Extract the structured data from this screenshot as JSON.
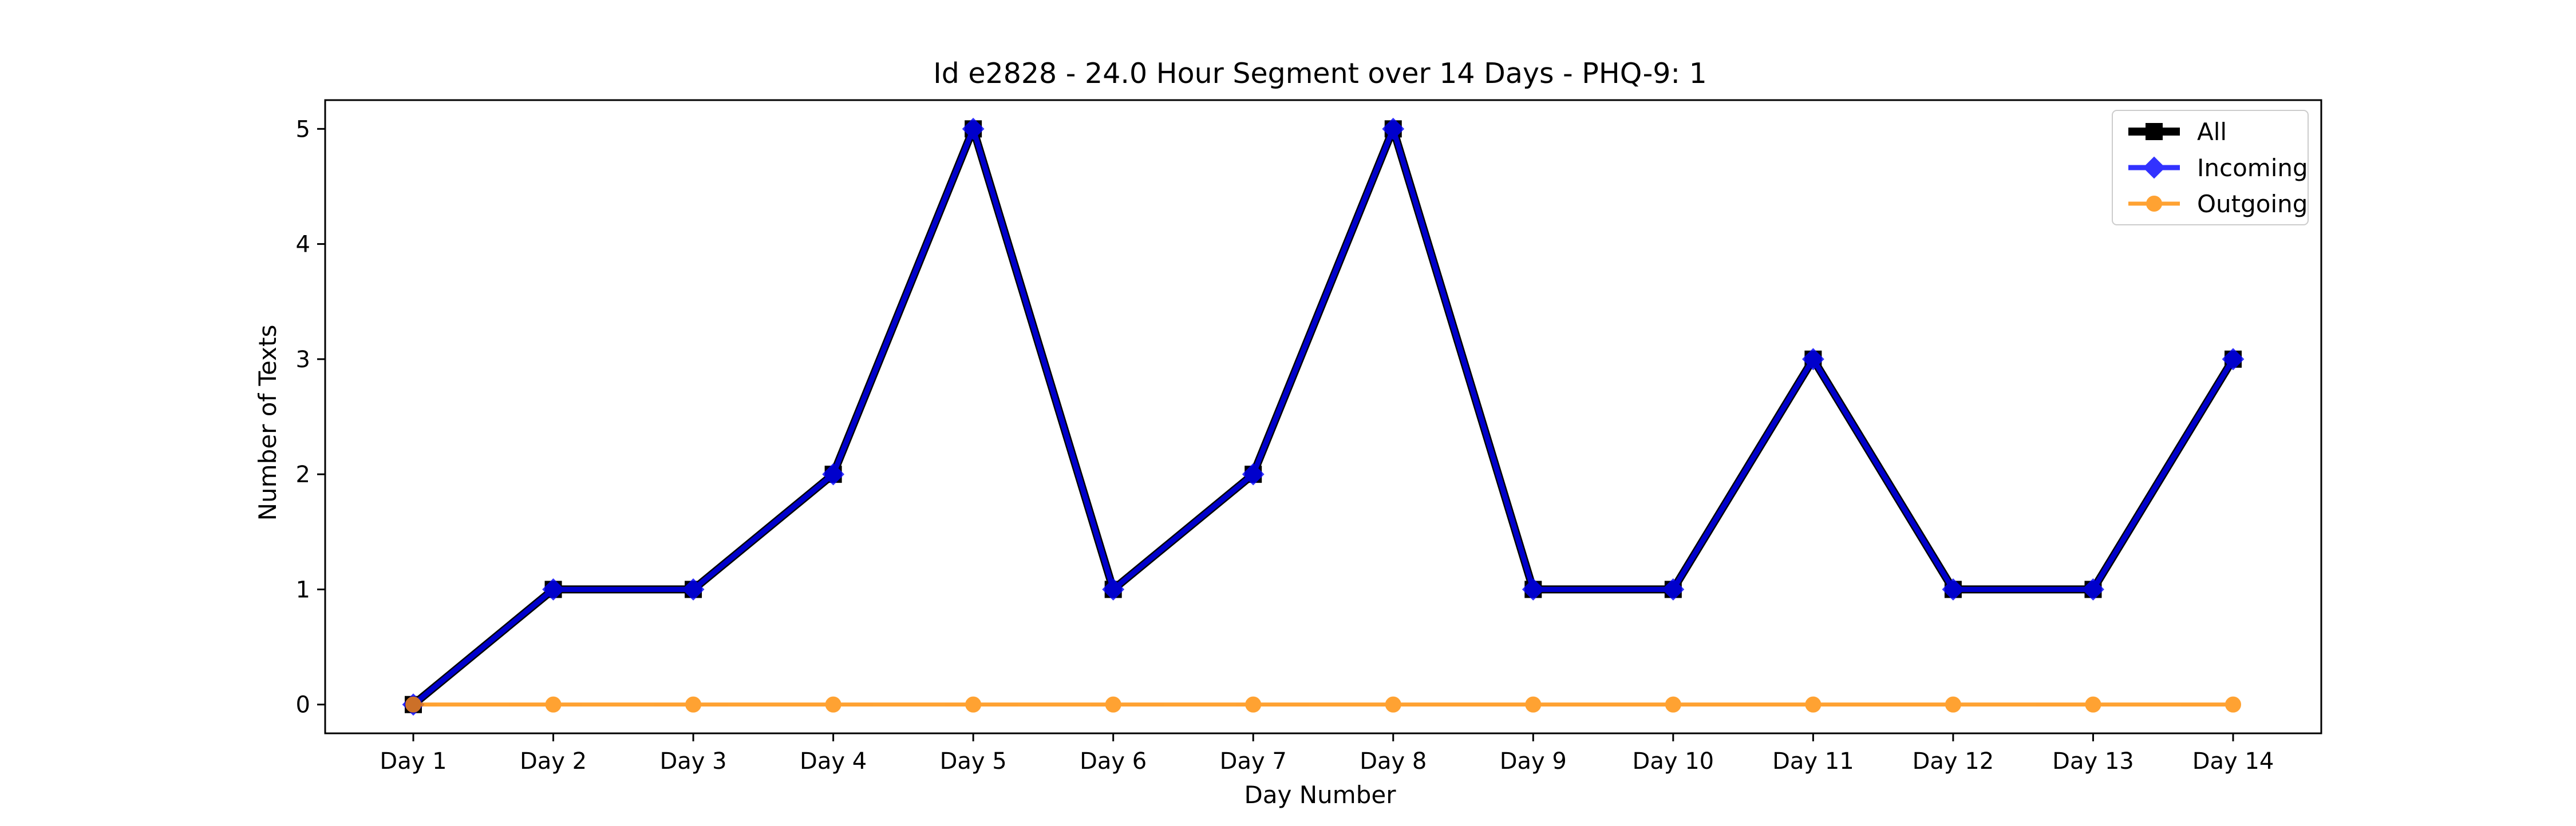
{
  "chart_data": {
    "type": "line",
    "title": "Id e2828 - 24.0 Hour Segment over 14 Days - PHQ-9: 1",
    "xlabel": "Day Number",
    "ylabel": "Number of Texts",
    "categories": [
      "Day 1",
      "Day 2",
      "Day 3",
      "Day 4",
      "Day 5",
      "Day 6",
      "Day 7",
      "Day 8",
      "Day 9",
      "Day 10",
      "Day 11",
      "Day 12",
      "Day 13",
      "Day 14"
    ],
    "yticks": [
      0,
      1,
      2,
      3,
      4,
      5
    ],
    "ylim": [
      -0.25,
      5.25
    ],
    "grid": false,
    "legend_position": "top-right",
    "series": [
      {
        "name": "All",
        "values": [
          0,
          1,
          1,
          2,
          5,
          1,
          2,
          5,
          1,
          1,
          3,
          1,
          1,
          3
        ],
        "color": "#000000",
        "marker": "square"
      },
      {
        "name": "Incoming",
        "values": [
          0,
          1,
          1,
          2,
          5,
          1,
          2,
          5,
          1,
          1,
          3,
          1,
          1,
          3
        ],
        "color": "#0000ff",
        "marker": "diamond"
      },
      {
        "name": "Outgoing",
        "values": [
          0,
          0,
          0,
          0,
          0,
          0,
          0,
          0,
          0,
          0,
          0,
          0,
          0,
          0
        ],
        "color": "#ff8c00",
        "marker": "circle"
      }
    ]
  }
}
